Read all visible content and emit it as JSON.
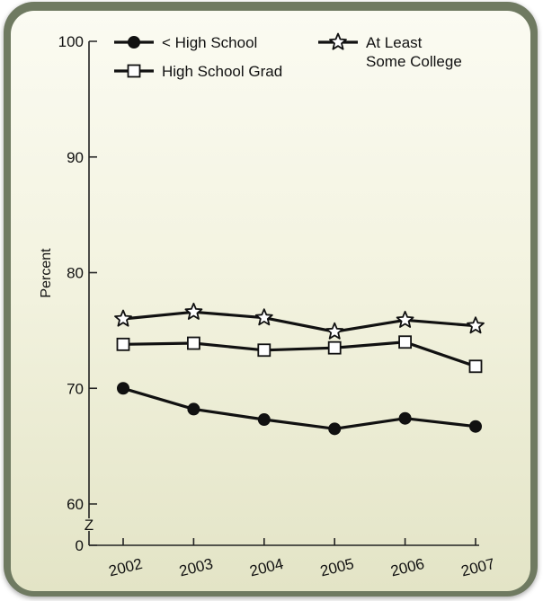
{
  "chart_data": {
    "type": "line",
    "x": [
      "2002",
      "2003",
      "2004",
      "2005",
      "2006",
      "2007"
    ],
    "ylabel": "Percent",
    "ylim": [
      60,
      100
    ],
    "y_axis_break": true,
    "yticks": [
      "100",
      "90",
      "80",
      "70",
      "60",
      "0"
    ],
    "break_symbol": "Z",
    "grid": false,
    "legend_position": "top",
    "series": [
      {
        "name": "< High School",
        "marker": "filled-circle",
        "values": [
          70.0,
          68.2,
          67.3,
          66.5,
          67.4,
          66.7
        ]
      },
      {
        "name": "High School Grad",
        "marker": "open-square",
        "values": [
          73.8,
          73.9,
          73.3,
          73.5,
          74.0,
          71.9
        ]
      },
      {
        "name": "At Least Some College",
        "name_lines": [
          "At Least",
          "Some College"
        ],
        "marker": "open-star",
        "values": [
          76.0,
          76.6,
          76.1,
          74.9,
          75.9,
          75.4
        ]
      }
    ]
  },
  "colors": {
    "frame": "#6f7a61",
    "panel_top": "#fbfbf2",
    "panel_bottom": "#e3e4c6",
    "ink": "#111111"
  }
}
